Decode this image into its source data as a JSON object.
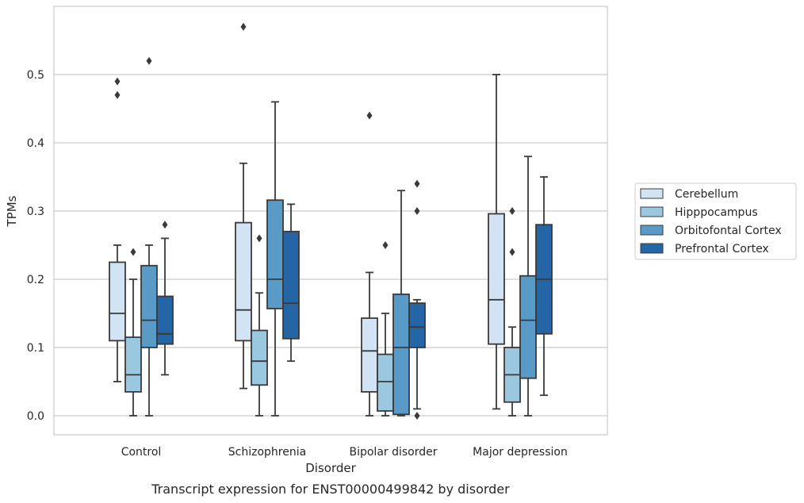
{
  "chart_data": {
    "type": "box",
    "caption": "Transcript expression for ENST00000499842 by disorder",
    "xlabel": "Disorder",
    "ylabel": "TPMs",
    "ylim": [
      -0.028,
      0.6
    ],
    "yticks": [
      "0.0",
      "0.1",
      "0.2",
      "0.3",
      "0.4",
      "0.5"
    ],
    "grid": true,
    "legend_position": "right",
    "categories": [
      "Control",
      "Schizophrenia",
      "Bipolar disorder",
      "Major depression"
    ],
    "series": [
      {
        "name": "Cerebellum",
        "color": "#d2e3f3",
        "boxes": [
          {
            "whislo": 0.05,
            "q1": 0.11,
            "med": 0.15,
            "q3": 0.225,
            "whishi": 0.25,
            "fliers": [
              0.47,
              0.49
            ]
          },
          {
            "whislo": 0.04,
            "q1": 0.11,
            "med": 0.155,
            "q3": 0.283,
            "whishi": 0.37,
            "fliers": [
              0.57
            ]
          },
          {
            "whislo": 0.0,
            "q1": 0.035,
            "med": 0.095,
            "q3": 0.143,
            "whishi": 0.21,
            "fliers": [
              0.44
            ]
          },
          {
            "whislo": 0.01,
            "q1": 0.105,
            "med": 0.17,
            "q3": 0.296,
            "whishi": 0.5,
            "fliers": []
          }
        ]
      },
      {
        "name": "Hipppocampus",
        "color": "#9ac8e0",
        "boxes": [
          {
            "whislo": 0.0,
            "q1": 0.035,
            "med": 0.06,
            "q3": 0.115,
            "whishi": 0.2,
            "fliers": [
              0.24
            ]
          },
          {
            "whislo": 0.0,
            "q1": 0.045,
            "med": 0.08,
            "q3": 0.125,
            "whishi": 0.18,
            "fliers": [
              0.26
            ]
          },
          {
            "whislo": 0.0,
            "q1": 0.007,
            "med": 0.05,
            "q3": 0.09,
            "whishi": 0.15,
            "fliers": [
              0.25
            ]
          },
          {
            "whislo": 0.0,
            "q1": 0.02,
            "med": 0.06,
            "q3": 0.1,
            "whishi": 0.13,
            "fliers": [
              0.24,
              0.3
            ]
          }
        ]
      },
      {
        "name": "Orbitofontal Cortex",
        "color": "#5a9ac7",
        "boxes": [
          {
            "whislo": 0.0,
            "q1": 0.1,
            "med": 0.14,
            "q3": 0.22,
            "whishi": 0.25,
            "fliers": [
              0.52
            ]
          },
          {
            "whislo": 0.0,
            "q1": 0.157,
            "med": 0.2,
            "q3": 0.316,
            "whishi": 0.46,
            "fliers": []
          },
          {
            "whislo": 0.0,
            "q1": 0.002,
            "med": 0.1,
            "q3": 0.178,
            "whishi": 0.33,
            "fliers": []
          },
          {
            "whislo": 0.0,
            "q1": 0.055,
            "med": 0.14,
            "q3": 0.205,
            "whishi": 0.38,
            "fliers": []
          }
        ]
      },
      {
        "name": "Prefrontal Cortex",
        "color": "#2465a5",
        "boxes": [
          {
            "whislo": 0.06,
            "q1": 0.105,
            "med": 0.12,
            "q3": 0.175,
            "whishi": 0.26,
            "fliers": [
              0.28
            ]
          },
          {
            "whislo": 0.08,
            "q1": 0.113,
            "med": 0.165,
            "q3": 0.27,
            "whishi": 0.31,
            "fliers": []
          },
          {
            "whislo": 0.01,
            "q1": 0.1,
            "med": 0.13,
            "q3": 0.165,
            "whishi": 0.17,
            "fliers": [
              0.0,
              0.3,
              0.34
            ]
          },
          {
            "whislo": 0.03,
            "q1": 0.12,
            "med": 0.2,
            "q3": 0.28,
            "whishi": 0.35,
            "fliers": []
          }
        ]
      }
    ]
  }
}
